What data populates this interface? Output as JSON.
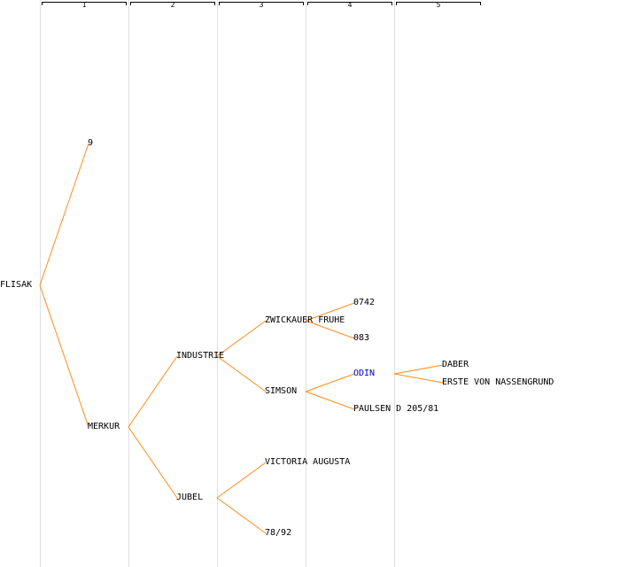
{
  "generations": [
    "1",
    "2",
    "3",
    "4",
    "5"
  ],
  "nodes": {
    "root": "FLISAK",
    "sire": "9",
    "dam": "MERKUR",
    "dam_sire": "INDUSTRIE",
    "dam_dam": "JUBEL",
    "ds_sire": "ZWICKAUER FRUHE",
    "ds_dam": "SIMSON",
    "dd_sire": "VICTORIA AUGUSTA",
    "dd_dam": "78/92",
    "dss_sire": "0742",
    "dss_dam": "083",
    "dsd_sire": "ODIN",
    "dsd_dam": "PAULSEN D 205/81",
    "odin_sire": "DABER",
    "odin_dam": "ERSTE VON NASSENGRUND"
  },
  "colors": {
    "line": "#ff8c1a",
    "highlight": "#0000cc",
    "grid": "#e0e0e0"
  }
}
